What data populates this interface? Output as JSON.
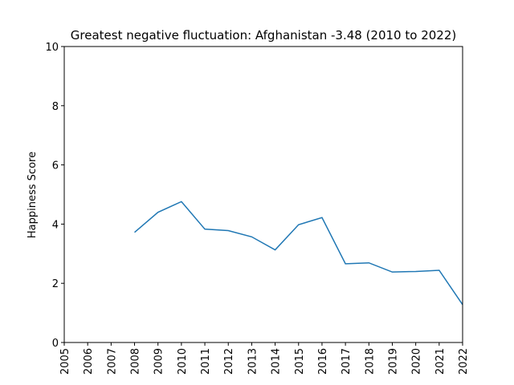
{
  "chart_data": {
    "type": "line",
    "title": "Greatest negative fluctuation: Afghanistan -3.48 (2010 to 2022)",
    "y_label": "Happiness Score",
    "x": [
      2008,
      2009,
      2010,
      2011,
      2012,
      2013,
      2014,
      2015,
      2016,
      2017,
      2018,
      2019,
      2020,
      2021,
      2022
    ],
    "series": [
      {
        "color": "#1f77b4",
        "values": [
          3.72,
          4.4,
          4.76,
          3.83,
          3.78,
          3.57,
          3.13,
          3.98,
          4.22,
          2.66,
          2.69,
          2.38,
          2.4,
          2.44,
          1.28
        ]
      }
    ],
    "xlim": [
      2005,
      2022
    ],
    "xticks": [
      2005,
      2006,
      2007,
      2008,
      2009,
      2010,
      2011,
      2012,
      2013,
      2014,
      2015,
      2016,
      2017,
      2018,
      2019,
      2020,
      2021,
      2022
    ],
    "ylim": [
      0,
      10
    ],
    "yticks": [
      0,
      2,
      4,
      6,
      8,
      10
    ]
  }
}
